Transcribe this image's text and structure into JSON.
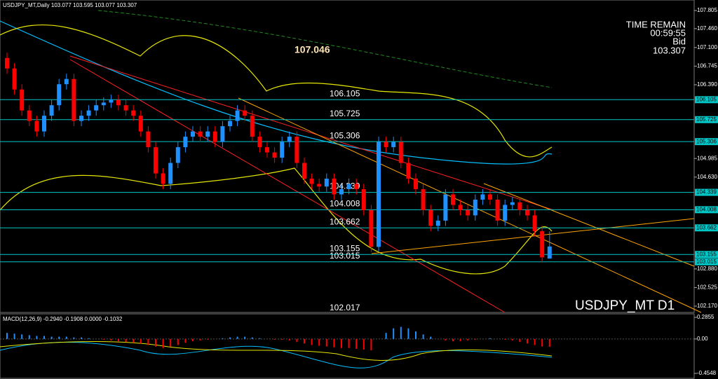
{
  "header": {
    "symbol_line": "USDJPY_MT,Daily 103.077 103.595 103.077 103.307"
  },
  "info": {
    "time_remain_label": "TIME REMAIN",
    "time": "00:59:55",
    "bid_label": "Bid",
    "bid": "103.307"
  },
  "chart_data": [
    {
      "type": "candlestick",
      "title": "USDJPY_MT D1",
      "up_color": "#1e90ff",
      "down_color": "#ff0000",
      "open": [
        106.9,
        106.7,
        106.3,
        105.9,
        105.7,
        105.5,
        105.8,
        106.0,
        106.4,
        106.5,
        105.7,
        105.8,
        105.9,
        106.0,
        106.05,
        106.1,
        106.0,
        105.9,
        105.8,
        105.5,
        105.2,
        104.7,
        104.5,
        104.9,
        105.2,
        105.4,
        105.5,
        105.4,
        105.5,
        105.3,
        105.6,
        105.7,
        105.9,
        105.8,
        105.4,
        105.2,
        105.1,
        105.0,
        105.3,
        105.4,
        104.9,
        104.6,
        104.5,
        104.45,
        104.6,
        104.3,
        104.4,
        104.5,
        104.4,
        104.0,
        103.3,
        105.3,
        105.2,
        105.3,
        104.9,
        104.6,
        104.4,
        104.0,
        103.7,
        103.8,
        104.3,
        104.1,
        104.0,
        103.9,
        104.2,
        104.3,
        104.2,
        103.8,
        104.1,
        104.15,
        104.0,
        103.9,
        103.6,
        103.077
      ],
      "high": [
        107.0,
        106.8,
        106.4,
        106.0,
        105.8,
        105.9,
        106.1,
        106.5,
        106.6,
        106.6,
        105.9,
        106.0,
        106.1,
        106.15,
        106.2,
        106.2,
        106.1,
        106.0,
        105.9,
        105.6,
        105.3,
        104.8,
        105.0,
        105.3,
        105.5,
        105.6,
        105.6,
        105.6,
        105.6,
        105.7,
        105.8,
        106.0,
        106.0,
        105.9,
        105.5,
        105.3,
        105.2,
        105.4,
        105.5,
        105.5,
        105.0,
        104.7,
        104.6,
        104.7,
        104.7,
        104.5,
        104.6,
        104.6,
        104.5,
        104.1,
        105.4,
        105.4,
        105.4,
        105.4,
        105.0,
        104.7,
        104.5,
        104.1,
        103.9,
        104.4,
        104.4,
        104.2,
        104.1,
        104.3,
        104.4,
        104.4,
        104.3,
        104.2,
        104.25,
        104.25,
        104.1,
        104.0,
        103.7,
        103.595
      ],
      "low": [
        106.6,
        106.2,
        105.8,
        105.6,
        105.4,
        105.4,
        105.7,
        105.9,
        106.3,
        105.6,
        105.6,
        105.7,
        105.8,
        105.9,
        105.95,
        105.9,
        105.8,
        105.7,
        105.4,
        105.1,
        104.6,
        104.4,
        104.4,
        104.8,
        105.1,
        105.3,
        105.3,
        105.3,
        105.2,
        105.2,
        105.5,
        105.6,
        105.7,
        105.3,
        105.1,
        105.0,
        104.9,
        104.9,
        105.2,
        104.8,
        104.5,
        104.4,
        104.35,
        104.35,
        104.2,
        104.2,
        104.3,
        104.3,
        103.9,
        103.2,
        103.2,
        105.1,
        105.1,
        104.8,
        104.5,
        104.3,
        103.9,
        103.6,
        103.6,
        103.7,
        104.0,
        103.9,
        103.8,
        103.8,
        104.1,
        104.1,
        103.7,
        103.7,
        104.0,
        103.9,
        103.8,
        103.5,
        103.0,
        103.077
      ],
      "close": [
        106.7,
        106.3,
        105.9,
        105.7,
        105.5,
        105.8,
        106.0,
        106.4,
        106.5,
        105.7,
        105.8,
        105.9,
        106.0,
        106.05,
        106.1,
        106.0,
        105.9,
        105.8,
        105.5,
        105.2,
        104.7,
        104.5,
        104.9,
        105.2,
        105.4,
        105.5,
        105.4,
        105.5,
        105.3,
        105.6,
        105.7,
        105.9,
        105.8,
        105.4,
        105.2,
        105.1,
        105.0,
        105.3,
        105.4,
        104.9,
        104.6,
        104.5,
        104.45,
        104.6,
        104.3,
        104.4,
        104.5,
        104.4,
        104.0,
        103.3,
        105.3,
        105.2,
        105.3,
        104.9,
        104.6,
        104.4,
        104.0,
        103.7,
        103.8,
        104.3,
        104.1,
        104.0,
        103.9,
        104.2,
        104.3,
        104.2,
        103.8,
        104.1,
        104.15,
        104.0,
        103.9,
        103.6,
        103.1,
        103.307
      ],
      "ylim": [
        102.17,
        107.805
      ],
      "yticks": [
        107.805,
        {
          "value": 107.46,
          "label": "107.460"
        },
        {
          "value": 107.1,
          "label": "107.100"
        },
        106.745,
        {
          "value": 106.39,
          "label": "106.390"
        },
        104.985,
        {
          "value": 104.63,
          "label": "104.630"
        },
        {
          "value": 102.88,
          "label": "102.880"
        },
        102.525,
        {
          "value": 102.17,
          "label": "102.170"
        }
      ],
      "levels": [
        106.105,
        105.725,
        105.306,
        104.339,
        104.008,
        103.662,
        103.155,
        103.015
      ],
      "level_color": "#00c8c8",
      "annotation": 107.046,
      "low_label": 102.017
    },
    {
      "type": "bar",
      "title": "MACD(12,26,9) -0.2940 -0.1908 0.0000 -0.1032",
      "up_color": "#1e90ff",
      "down_color": "#ff0000",
      "values": [
        0.08,
        0.07,
        0.06,
        0.05,
        0.04,
        0.04,
        0.03,
        0.03,
        0.03,
        0.02,
        0.02,
        0.01,
        0.0,
        -0.01,
        -0.02,
        -0.03,
        -0.04,
        -0.05,
        -0.06,
        -0.08,
        -0.1,
        -0.12,
        -0.1,
        -0.08,
        -0.05,
        -0.03,
        -0.02,
        -0.01,
        0.0,
        0.01,
        0.02,
        0.03,
        0.03,
        0.02,
        0.01,
        0.0,
        -0.01,
        -0.01,
        -0.02,
        -0.04,
        -0.06,
        -0.08,
        -0.09,
        -0.1,
        -0.11,
        -0.12,
        -0.12,
        -0.13,
        -0.14,
        -0.15,
        0.0,
        0.08,
        0.14,
        0.16,
        0.14,
        0.1,
        0.06,
        0.03,
        0.0,
        -0.02,
        -0.03,
        -0.03,
        -0.02,
        -0.01,
        0.0,
        0.01,
        0.0,
        -0.01,
        -0.02,
        -0.04,
        -0.06,
        -0.08,
        -0.1,
        -0.1032
      ],
      "ylim": [
        -0.4548,
        0.2855
      ],
      "yticks": [
        0.2855,
        {
          "value": 0,
          "label": "0.00"
        },
        -0.4548
      ]
    }
  ]
}
